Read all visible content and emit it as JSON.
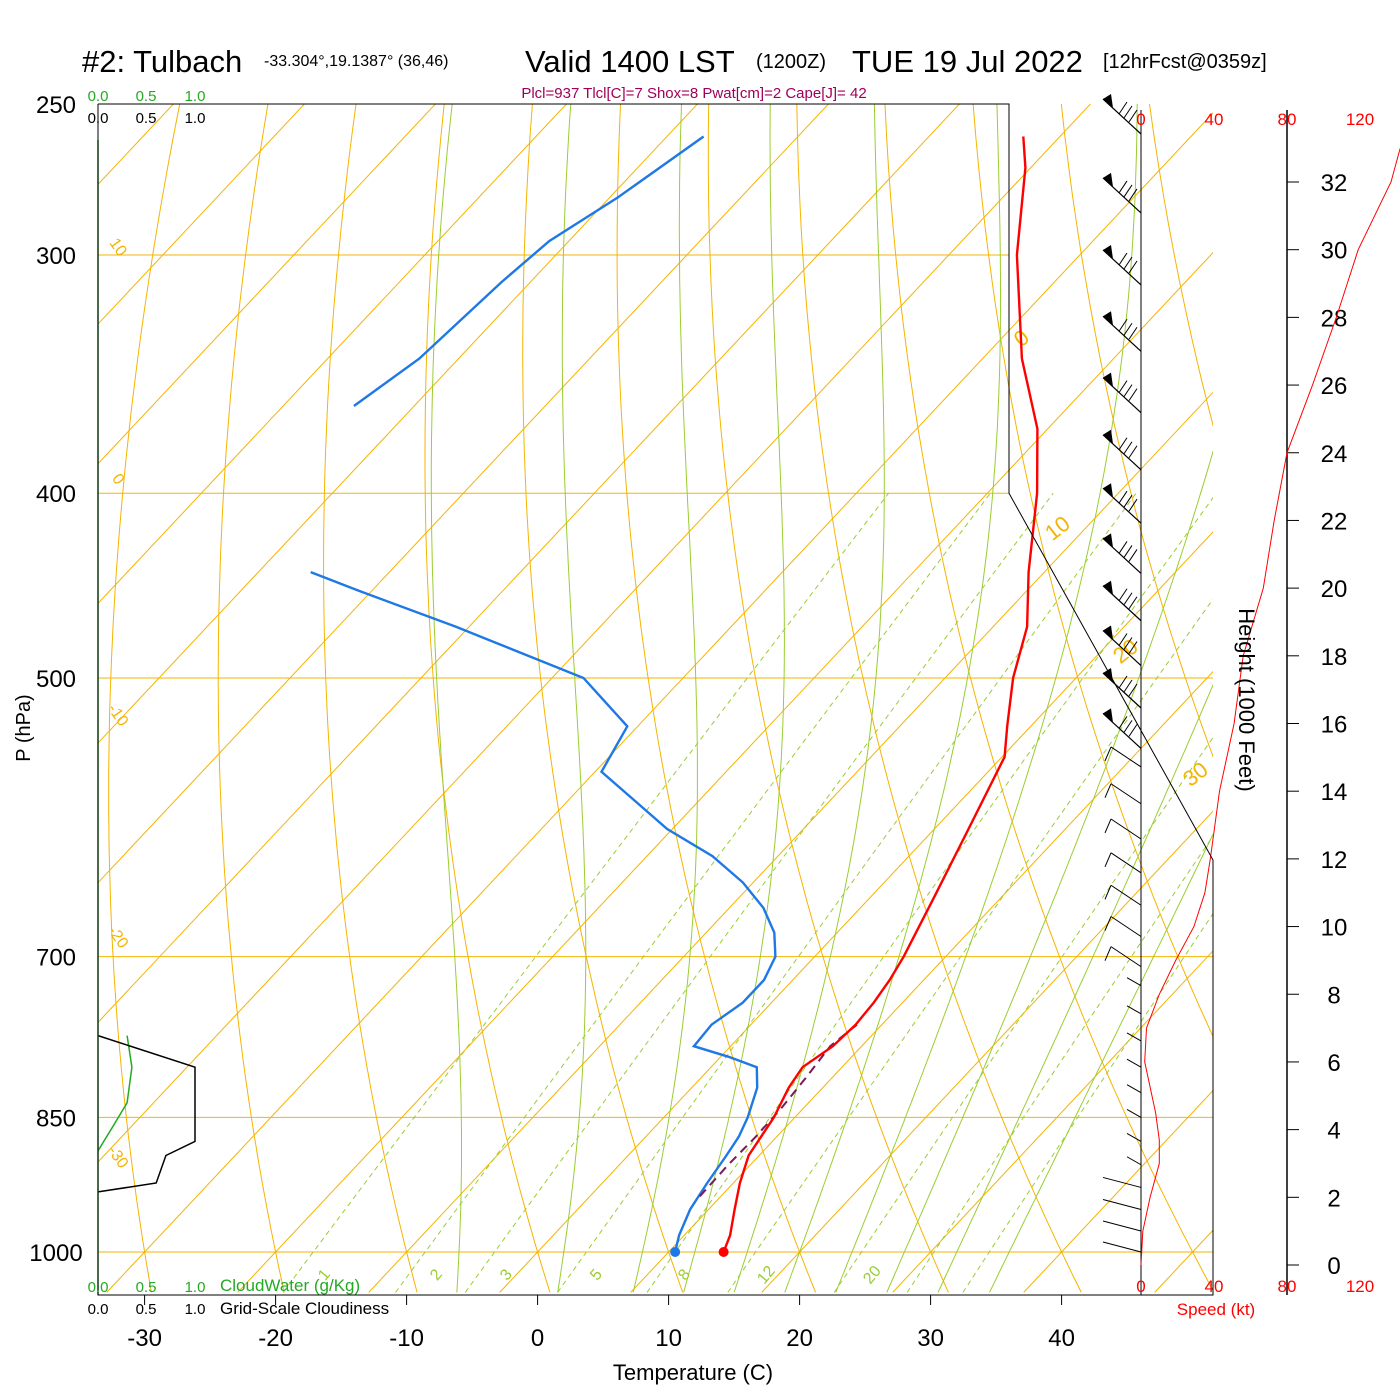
{
  "header": {
    "station": "#2: Tulbach",
    "coords": "-33.304°,19.1387° (36,46)",
    "valid": "Valid 1400 LST",
    "zulu": "(1200Z)",
    "date": "TUE 19 Jul 2022",
    "fcst": "[12hrFcst@0359z]",
    "indices": "Plcl=937 Tlcl[C]=7 Shox=8 Pwat[cm]=2 Cape[J]= 42"
  },
  "axes": {
    "xlabel": "Temperature (C)",
    "ylabel": "P (hPa)",
    "height_label": "Height (1000 Feet)",
    "speed_label": "Speed (kt)"
  },
  "scales": {
    "cloudwater_ticks": [
      "0.0",
      "0.5",
      "1.0"
    ],
    "cloudiness_ticks": [
      "0.0",
      "0.5",
      "1.0"
    ],
    "cloudwater_label": "CloudWater (g/Kg)",
    "cloudiness_label": "Grid-Scale Cloudiness",
    "speed_ticks": [
      "0",
      "40",
      "80",
      "120"
    ]
  },
  "colors": {
    "isotherm": "#f5b400",
    "dry_adiabat": "#f5b400",
    "moist_adiabat": "#9acd32",
    "mixing_ratio": "#9acd32",
    "temperature": "#ff0000",
    "dewpoint": "#1e78e6",
    "parcel": "#7a1a5a",
    "indices": "#a0005a",
    "cloudwater": "#22aa22",
    "speed": "#ff0000"
  },
  "chart_data": {
    "type": "skew-t log-p sounding",
    "pressure_levels": [
      250,
      300,
      400,
      500,
      700,
      850,
      1000
    ],
    "temperature_ticks": [
      -30,
      -20,
      -10,
      0,
      10,
      20,
      30,
      40
    ],
    "xlim": [
      -33,
      46
    ],
    "ylim_hpa": [
      250,
      1000
    ],
    "temperature_profile": [
      {
        "p": 1000,
        "t": 14.2
      },
      {
        "p": 980,
        "t": 13.5
      },
      {
        "p": 950,
        "t": 12.0
      },
      {
        "p": 920,
        "t": 10.5
      },
      {
        "p": 890,
        "t": 9.2
      },
      {
        "p": 850,
        "t": 8.4
      },
      {
        "p": 820,
        "t": 7.4
      },
      {
        "p": 800,
        "t": 7.0
      },
      {
        "p": 780,
        "t": 7.8
      },
      {
        "p": 760,
        "t": 8.0
      },
      {
        "p": 740,
        "t": 7.8
      },
      {
        "p": 720,
        "t": 7.4
      },
      {
        "p": 700,
        "t": 6.8
      },
      {
        "p": 650,
        "t": 4.8
      },
      {
        "p": 600,
        "t": 2.6
      },
      {
        "p": 550,
        "t": 0.2
      },
      {
        "p": 530,
        "t": -1.8
      },
      {
        "p": 500,
        "t": -4.8
      },
      {
        "p": 470,
        "t": -7.4
      },
      {
        "p": 440,
        "t": -11.2
      },
      {
        "p": 400,
        "t": -16.2
      },
      {
        "p": 370,
        "t": -20.8
      },
      {
        "p": 340,
        "t": -27.0
      },
      {
        "p": 300,
        "t": -34.8
      },
      {
        "p": 270,
        "t": -40.4
      },
      {
        "p": 260,
        "t": -42.8
      }
    ],
    "dewpoint_profile": [
      {
        "p": 1000,
        "t": 10.5
      },
      {
        "p": 980,
        "t": 9.6
      },
      {
        "p": 950,
        "t": 8.6
      },
      {
        "p": 920,
        "t": 8.0
      },
      {
        "p": 890,
        "t": 7.5
      },
      {
        "p": 870,
        "t": 7.1
      },
      {
        "p": 850,
        "t": 6.4
      },
      {
        "p": 820,
        "t": 5.0
      },
      {
        "p": 800,
        "t": 3.5
      },
      {
        "p": 790,
        "t": 0.6
      },
      {
        "p": 780,
        "t": -2.8
      },
      {
        "p": 760,
        "t": -3.0
      },
      {
        "p": 740,
        "t": -2.2
      },
      {
        "p": 720,
        "t": -2.2
      },
      {
        "p": 700,
        "t": -3.0
      },
      {
        "p": 680,
        "t": -4.8
      },
      {
        "p": 660,
        "t": -7.4
      },
      {
        "p": 640,
        "t": -10.8
      },
      {
        "p": 620,
        "t": -15.0
      },
      {
        "p": 600,
        "t": -20.4
      },
      {
        "p": 560,
        "t": -29.5
      },
      {
        "p": 530,
        "t": -30.8
      },
      {
        "p": 500,
        "t": -37.6
      },
      {
        "p": 470,
        "t": -51.0
      },
      {
        "p": 450,
        "t": -61.0
      },
      {
        "p": 440,
        "t": -66.0
      }
    ],
    "dewpoint_upper": [
      {
        "p": 360,
        "t": -74.6
      },
      {
        "p": 340,
        "t": -73.0
      },
      {
        "p": 310,
        "t": -72.2
      },
      {
        "p": 295,
        "t": -71.5
      },
      {
        "p": 280,
        "t": -69.4
      },
      {
        "p": 260,
        "t": -67.2
      }
    ],
    "parcel_profile": [
      {
        "p": 935,
        "t": 8.4
      },
      {
        "p": 900,
        "t": 8.3
      },
      {
        "p": 870,
        "t": 8.4
      },
      {
        "p": 840,
        "t": 8.3
      },
      {
        "p": 810,
        "t": 8.0
      },
      {
        "p": 780,
        "t": 7.6
      },
      {
        "p": 760,
        "t": 8.1
      }
    ],
    "surface_temperature": 14.2,
    "surface_dewpoint": 10.5,
    "isotherm_labels": [
      0,
      10,
      20,
      30
    ],
    "dry_adiabat_labels": [
      10,
      0,
      -10,
      -20,
      -30
    ],
    "mixing_ratio_labels": [
      "1",
      "2",
      "3",
      "5",
      "8",
      "12",
      "20"
    ],
    "mixing_ratio_values": [
      1,
      2,
      3,
      5,
      8,
      12,
      20
    ],
    "height_kft_ticks": [
      0,
      2,
      4,
      6,
      8,
      10,
      12,
      14,
      16,
      18,
      20,
      22,
      24,
      26,
      28,
      30,
      32
    ],
    "wind_speed_profile_kt": [
      {
        "h": 0,
        "s": 0
      },
      {
        "h": 1,
        "s": 1
      },
      {
        "h": 2,
        "s": 5
      },
      {
        "h": 3,
        "s": 10
      },
      {
        "h": 3.7,
        "s": 10
      },
      {
        "h": 4.5,
        "s": 8
      },
      {
        "h": 6,
        "s": 2
      },
      {
        "h": 7,
        "s": 3
      },
      {
        "h": 8,
        "s": 10
      },
      {
        "h": 9,
        "s": 19
      },
      {
        "h": 10,
        "s": 29
      },
      {
        "h": 11,
        "s": 35
      },
      {
        "h": 12,
        "s": 38
      },
      {
        "h": 14,
        "s": 43
      },
      {
        "h": 16,
        "s": 51
      },
      {
        "h": 18,
        "s": 56
      },
      {
        "h": 20,
        "s": 67
      },
      {
        "h": 22,
        "s": 73
      },
      {
        "h": 24,
        "s": 80
      },
      {
        "h": 26,
        "s": 94
      },
      {
        "h": 28,
        "s": 107
      },
      {
        "h": 30,
        "s": 119
      },
      {
        "h": 32,
        "s": 137
      },
      {
        "h": 33,
        "s": 142
      }
    ],
    "cloudwater_profile": [
      {
        "p": 770,
        "v": 0.3
      },
      {
        "p": 800,
        "v": 0.35
      },
      {
        "p": 835,
        "v": 0.3
      },
      {
        "p": 860,
        "v": 0.15
      },
      {
        "p": 885,
        "v": 0.0
      }
    ],
    "cloudiness_profile": [
      {
        "p": 770,
        "v": 0.0
      },
      {
        "p": 800,
        "v": 1.0
      },
      {
        "p": 875,
        "v": 1.0
      },
      {
        "p": 890,
        "v": 0.7
      },
      {
        "p": 920,
        "v": 0.6
      },
      {
        "p": 930,
        "v": 0.0
      }
    ],
    "wind_barbs_hpa": [
      250,
      275,
      300,
      325,
      350,
      375,
      400,
      425,
      450,
      475,
      500,
      525,
      550,
      575,
      600,
      625,
      650,
      675,
      700,
      725,
      750,
      775,
      800,
      825,
      850,
      875,
      900,
      925,
      950,
      975,
      1000
    ]
  }
}
